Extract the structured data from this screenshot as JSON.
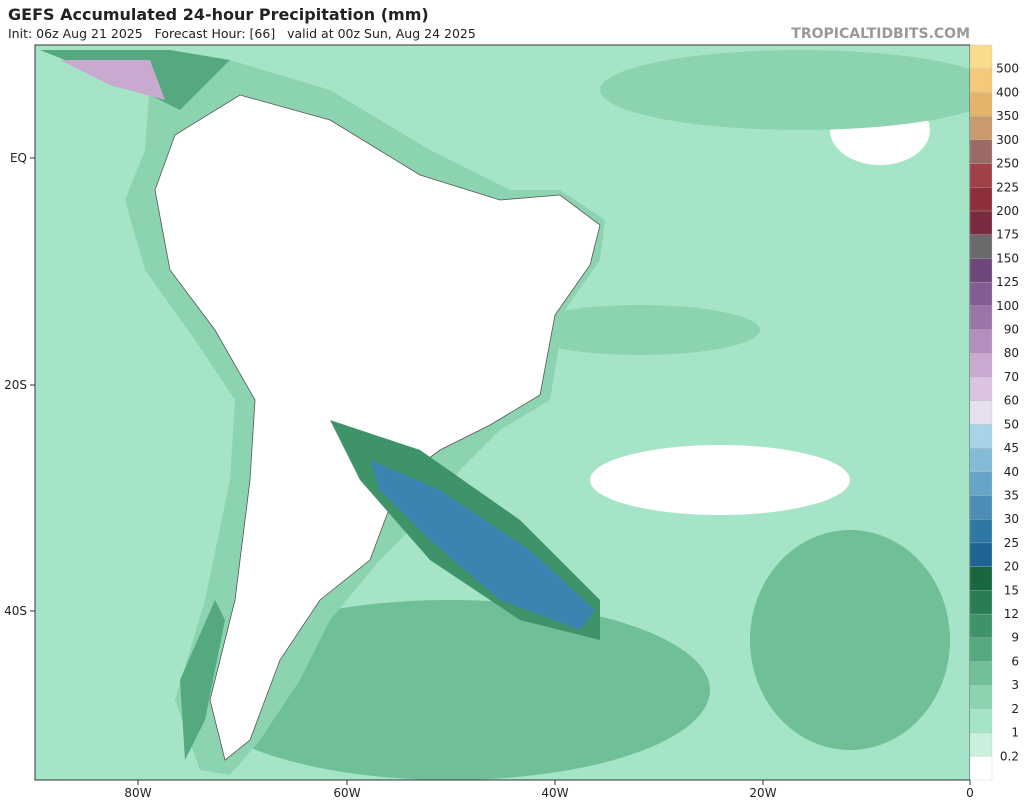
{
  "header": {
    "title": "GEFS Accumulated 24-hour Precipitation (mm)",
    "subtitle": "Init: 06z Aug 21 2025   Forecast Hour: [66]   valid at 00z Sun, Aug 24 2025",
    "site": "TROPICALTIDBITS.COM"
  },
  "map": {
    "lat_labels": [
      "EQ",
      "20S",
      "40S"
    ],
    "lon_labels": [
      "80W",
      "60W",
      "40W",
      "20W",
      "0"
    ]
  },
  "colorbar": {
    "labels": [
      "0.2",
      "1",
      "2",
      "3",
      "6",
      "9",
      "12",
      "15",
      "20",
      "25",
      "30",
      "35",
      "40",
      "45",
      "50",
      "60",
      "70",
      "80",
      "90",
      "100",
      "125",
      "150",
      "175",
      "200",
      "225",
      "250",
      "300",
      "350",
      "400",
      "500"
    ],
    "colors": [
      "#ffffff",
      "#c8f0dc",
      "#a6e4c8",
      "#8cd4b0",
      "#6fbf97",
      "#55a97f",
      "#3f9368",
      "#2a7c52",
      "#17683f",
      "#1d6394",
      "#2f78a6",
      "#4a8eb8",
      "#66a5c8",
      "#84bcd8",
      "#a8d4e8",
      "#e6dff0",
      "#d9c5e0",
      "#c8a9cf",
      "#b48fbd",
      "#9c75a8",
      "#855b93",
      "#6e4679",
      "#6a6a6a",
      "#7a2a3e",
      "#8e2f3a",
      "#a0414a",
      "#9c6a66",
      "#c89a6c",
      "#e3b56c",
      "#f5c97a",
      "#fadc8c"
    ]
  }
}
